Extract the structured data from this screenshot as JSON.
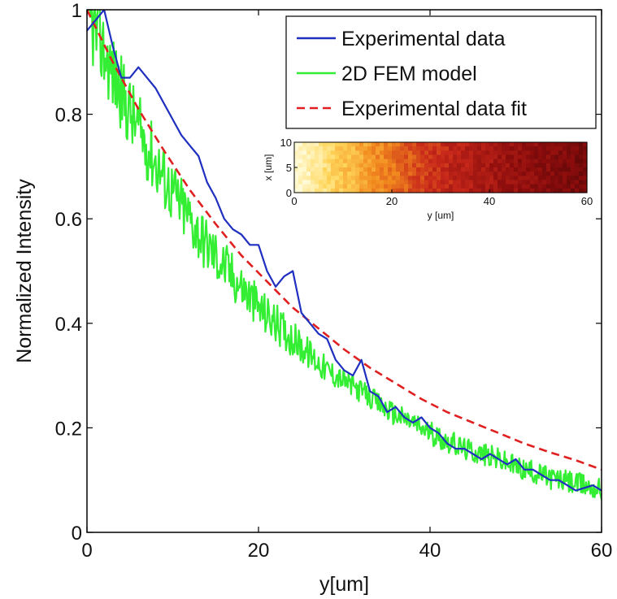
{
  "chart_data": {
    "type": "line",
    "xlabel": "y[um]",
    "ylabel": "Normalized Intensity",
    "xlim": [
      0,
      60
    ],
    "ylim": [
      0,
      1
    ],
    "x_ticks": [
      "0",
      "20",
      "40",
      "60"
    ],
    "y_ticks": [
      "0",
      "0.2",
      "0.4",
      "0.6",
      "0.8",
      "1"
    ],
    "grid": false,
    "legend_position": "top-right",
    "series": [
      {
        "name": "Experimental data",
        "color": "#1f2fbf",
        "style": "solid",
        "x": [
          0,
          1,
          2,
          3,
          4,
          5,
          6,
          7,
          8,
          9,
          10,
          11,
          12,
          13,
          14,
          15,
          16,
          17,
          18,
          19,
          20,
          21,
          22,
          23,
          24,
          25,
          26,
          27,
          28,
          29,
          30,
          31,
          32,
          33,
          34,
          35,
          36,
          37,
          38,
          39,
          40,
          41,
          42,
          43,
          44,
          45,
          46,
          47,
          48,
          49,
          50,
          51,
          52,
          53,
          54,
          55,
          56,
          57,
          58,
          59,
          60
        ],
        "y": [
          0.96,
          0.98,
          1.0,
          0.93,
          0.87,
          0.87,
          0.89,
          0.87,
          0.85,
          0.82,
          0.79,
          0.76,
          0.74,
          0.72,
          0.67,
          0.64,
          0.6,
          0.58,
          0.57,
          0.55,
          0.55,
          0.5,
          0.47,
          0.49,
          0.5,
          0.42,
          0.4,
          0.38,
          0.37,
          0.33,
          0.31,
          0.3,
          0.33,
          0.27,
          0.26,
          0.23,
          0.24,
          0.22,
          0.21,
          0.22,
          0.2,
          0.19,
          0.17,
          0.16,
          0.16,
          0.15,
          0.14,
          0.15,
          0.14,
          0.13,
          0.14,
          0.12,
          0.12,
          0.11,
          0.1,
          0.1,
          0.09,
          0.08,
          0.085,
          0.09,
          0.08
        ]
      },
      {
        "name": "2D FEM model",
        "color": "#33ee33",
        "style": "solid",
        "noisy": true,
        "x": [
          0,
          2,
          4,
          6,
          8,
          10,
          12,
          14,
          16,
          18,
          20,
          22,
          24,
          26,
          28,
          30,
          32,
          34,
          36,
          38,
          40,
          42,
          44,
          46,
          48,
          50,
          52,
          54,
          56,
          58,
          60
        ],
        "y": [
          0.99,
          0.92,
          0.84,
          0.77,
          0.71,
          0.65,
          0.6,
          0.55,
          0.51,
          0.47,
          0.43,
          0.4,
          0.37,
          0.34,
          0.31,
          0.29,
          0.27,
          0.245,
          0.225,
          0.21,
          0.19,
          0.175,
          0.16,
          0.15,
          0.14,
          0.125,
          0.115,
          0.105,
          0.097,
          0.09,
          0.082
        ]
      },
      {
        "name": "Experimental data fit",
        "color": "#e02020",
        "style": "dashed",
        "x": [
          0,
          3,
          6,
          9,
          12,
          15,
          18,
          21,
          24,
          27,
          30,
          33,
          36,
          39,
          42,
          45,
          48,
          51,
          54,
          57,
          60
        ],
        "y": [
          1.0,
          0.9,
          0.81,
          0.73,
          0.655,
          0.59,
          0.53,
          0.48,
          0.43,
          0.39,
          0.35,
          0.315,
          0.285,
          0.255,
          0.23,
          0.21,
          0.19,
          0.17,
          0.153,
          0.138,
          0.12
        ]
      }
    ],
    "inset": {
      "type": "heatmap",
      "xlabel": "y [um]",
      "ylabel": "x [um]",
      "xlim": [
        0,
        60
      ],
      "ylim": [
        0,
        10
      ],
      "x_ticks": [
        "0",
        "20",
        "40",
        "60"
      ],
      "y_ticks": [
        "0",
        "5",
        "10"
      ],
      "colormap": [
        "#fffbd8",
        "#ffd65a",
        "#f28a1e",
        "#c8281a",
        "#8a0c0c",
        "#4a0606"
      ],
      "intensity_profile": [
        1.0,
        0.93,
        0.85,
        0.78,
        0.71,
        0.65,
        0.59,
        0.54,
        0.49,
        0.44,
        0.4,
        0.36,
        0.33,
        0.3,
        0.27,
        0.24,
        0.22,
        0.2,
        0.18,
        0.16,
        0.14
      ]
    }
  }
}
